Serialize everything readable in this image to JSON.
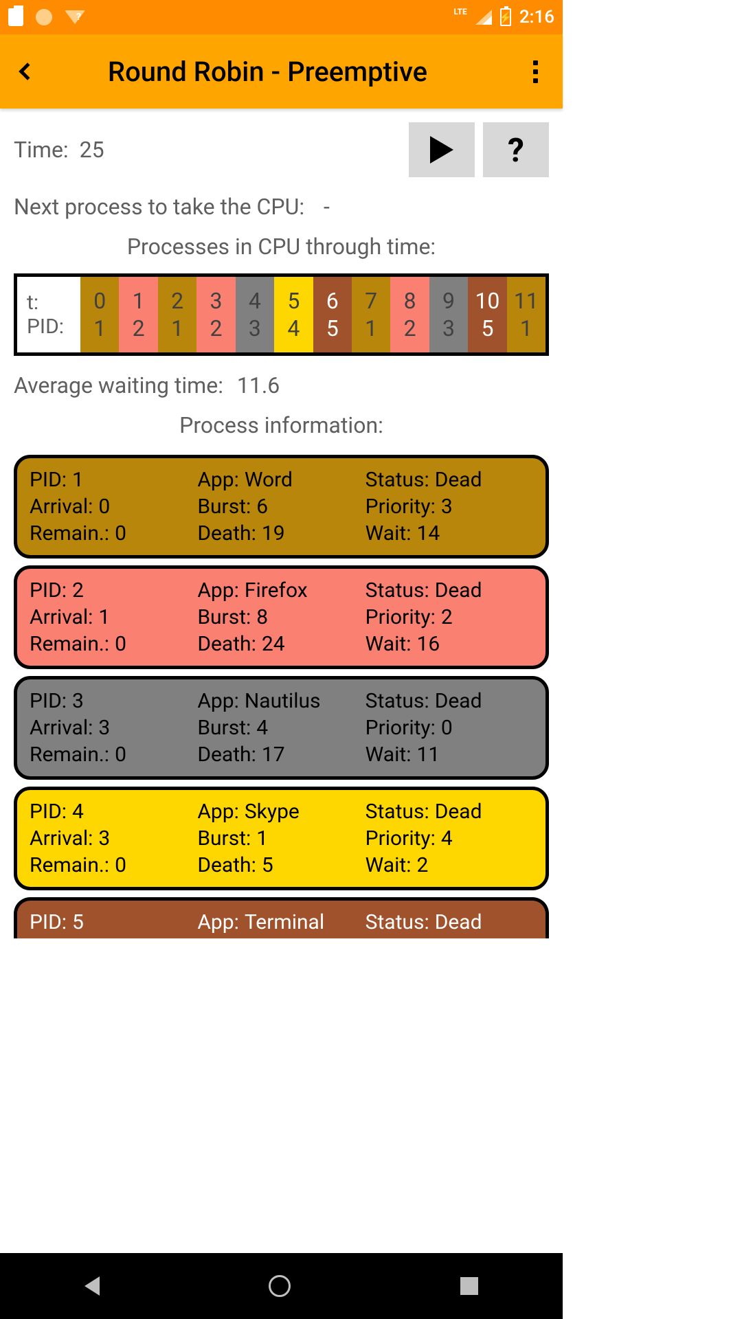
{
  "status_bar": {
    "lte": "LTE",
    "time": "2:16",
    "bg": "#ff8c00"
  },
  "app_bar": {
    "title": "Round Robin - Preemptive",
    "bg": "#ffa500"
  },
  "time": {
    "label": "Time:",
    "value": "25"
  },
  "next": {
    "label": "Next process to take the CPU:",
    "value": "-"
  },
  "timeline": {
    "title": "Processes in CPU through time:",
    "head_t": "t:",
    "head_pid": "PID:",
    "cells": [
      {
        "t": "0",
        "pid": "1",
        "bg": "#b8860b",
        "fg": "#404040"
      },
      {
        "t": "1",
        "pid": "2",
        "bg": "#fa8072",
        "fg": "#404040"
      },
      {
        "t": "2",
        "pid": "1",
        "bg": "#b8860b",
        "fg": "#404040"
      },
      {
        "t": "3",
        "pid": "2",
        "bg": "#fa8072",
        "fg": "#404040"
      },
      {
        "t": "4",
        "pid": "3",
        "bg": "#808080",
        "fg": "#404040"
      },
      {
        "t": "5",
        "pid": "4",
        "bg": "#ffd700",
        "fg": "#404040"
      },
      {
        "t": "6",
        "pid": "5",
        "bg": "#a0522d",
        "fg": "#ffffff"
      },
      {
        "t": "7",
        "pid": "1",
        "bg": "#b8860b",
        "fg": "#404040"
      },
      {
        "t": "8",
        "pid": "2",
        "bg": "#fa8072",
        "fg": "#404040"
      },
      {
        "t": "9",
        "pid": "3",
        "bg": "#808080",
        "fg": "#404040"
      },
      {
        "t": "10",
        "pid": "5",
        "bg": "#a0522d",
        "fg": "#ffffff"
      },
      {
        "t": "11",
        "pid": "1",
        "bg": "#b8860b",
        "fg": "#404040"
      }
    ]
  },
  "avg": {
    "label": "Average waiting time:",
    "value": "11.6"
  },
  "proc_title": "Process information:",
  "labels": {
    "pid": "PID:",
    "app": "App:",
    "status": "Status:",
    "arrival": "Arrival:",
    "burst": "Burst:",
    "priority": "Priority:",
    "remain": "Remain.:",
    "death": "Death:",
    "wait": "Wait:"
  },
  "processes": [
    {
      "pid": "1",
      "app": "Word",
      "status": "Dead",
      "arrival": "0",
      "burst": "6",
      "priority": "3",
      "remain": "0",
      "death": "19",
      "wait": "14",
      "bg": "#b8860b",
      "fg": "#000000"
    },
    {
      "pid": "2",
      "app": "Firefox",
      "status": "Dead",
      "arrival": "1",
      "burst": "8",
      "priority": "2",
      "remain": "0",
      "death": "24",
      "wait": "16",
      "bg": "#fa8072",
      "fg": "#000000"
    },
    {
      "pid": "3",
      "app": "Nautilus",
      "status": "Dead",
      "arrival": "3",
      "burst": "4",
      "priority": "0",
      "remain": "0",
      "death": "17",
      "wait": "11",
      "bg": "#808080",
      "fg": "#000000"
    },
    {
      "pid": "4",
      "app": "Skype",
      "status": "Dead",
      "arrival": "3",
      "burst": "1",
      "priority": "4",
      "remain": "0",
      "death": "5",
      "wait": "2",
      "bg": "#ffd700",
      "fg": "#000000"
    },
    {
      "pid": "5",
      "app": "Terminal",
      "status": "Dead",
      "arrival": "",
      "burst": "",
      "priority": "",
      "remain": "",
      "death": "",
      "wait": "",
      "bg": "#a0522d",
      "fg": "#ffffff"
    }
  ]
}
